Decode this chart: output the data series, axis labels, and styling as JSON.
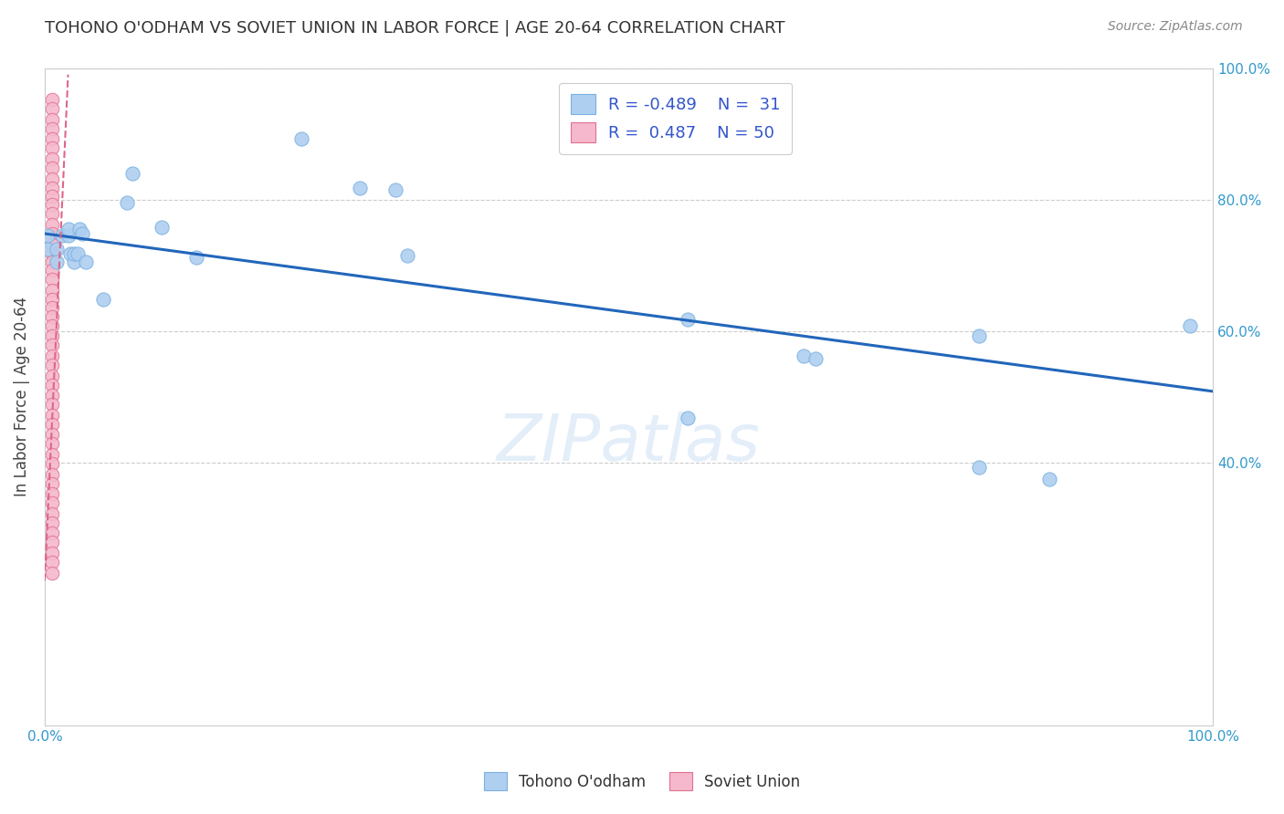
{
  "title": "TOHONO O'ODHAM VS SOVIET UNION IN LABOR FORCE | AGE 20-64 CORRELATION CHART",
  "source": "Source: ZipAtlas.com",
  "ylabel": "In Labor Force | Age 20-64",
  "xlim": [
    0.0,
    1.0
  ],
  "ylim": [
    0.0,
    1.0
  ],
  "tohono_color": "#aecff0",
  "tohono_edge": "#7ab0e0",
  "soviet_color": "#f5b8cc",
  "soviet_edge": "#e07090",
  "trend_color_tohono": "#2266bb",
  "trend_color_soviet": "#dd6688",
  "watermark": "ZIPatlas",
  "tohono_points": [
    [
      0.002,
      0.745
    ],
    [
      0.002,
      0.725
    ],
    [
      0.01,
      0.725
    ],
    [
      0.01,
      0.705
    ],
    [
      0.015,
      0.745
    ],
    [
      0.02,
      0.745
    ],
    [
      0.02,
      0.755
    ],
    [
      0.022,
      0.718
    ],
    [
      0.025,
      0.705
    ],
    [
      0.025,
      0.718
    ],
    [
      0.028,
      0.718
    ],
    [
      0.03,
      0.755
    ],
    [
      0.032,
      0.748
    ],
    [
      0.035,
      0.705
    ],
    [
      0.05,
      0.648
    ],
    [
      0.07,
      0.795
    ],
    [
      0.075,
      0.84
    ],
    [
      0.1,
      0.758
    ],
    [
      0.13,
      0.712
    ],
    [
      0.22,
      0.892
    ],
    [
      0.27,
      0.818
    ],
    [
      0.3,
      0.815
    ],
    [
      0.31,
      0.715
    ],
    [
      0.55,
      0.618
    ],
    [
      0.55,
      0.468
    ],
    [
      0.65,
      0.562
    ],
    [
      0.66,
      0.558
    ],
    [
      0.8,
      0.592
    ],
    [
      0.8,
      0.392
    ],
    [
      0.86,
      0.375
    ],
    [
      0.98,
      0.608
    ]
  ],
  "soviet_points": [
    [
      0.006,
      0.952
    ],
    [
      0.006,
      0.938
    ],
    [
      0.006,
      0.922
    ],
    [
      0.006,
      0.908
    ],
    [
      0.006,
      0.892
    ],
    [
      0.006,
      0.878
    ],
    [
      0.006,
      0.862
    ],
    [
      0.006,
      0.848
    ],
    [
      0.006,
      0.832
    ],
    [
      0.006,
      0.818
    ],
    [
      0.006,
      0.805
    ],
    [
      0.006,
      0.792
    ],
    [
      0.006,
      0.778
    ],
    [
      0.006,
      0.762
    ],
    [
      0.006,
      0.748
    ],
    [
      0.006,
      0.732
    ],
    [
      0.006,
      0.718
    ],
    [
      0.006,
      0.705
    ],
    [
      0.006,
      0.692
    ],
    [
      0.006,
      0.678
    ],
    [
      0.006,
      0.662
    ],
    [
      0.006,
      0.648
    ],
    [
      0.006,
      0.635
    ],
    [
      0.006,
      0.622
    ],
    [
      0.006,
      0.608
    ],
    [
      0.006,
      0.592
    ],
    [
      0.006,
      0.578
    ],
    [
      0.006,
      0.562
    ],
    [
      0.006,
      0.548
    ],
    [
      0.006,
      0.532
    ],
    [
      0.006,
      0.518
    ],
    [
      0.006,
      0.502
    ],
    [
      0.006,
      0.488
    ],
    [
      0.006,
      0.472
    ],
    [
      0.006,
      0.458
    ],
    [
      0.006,
      0.442
    ],
    [
      0.006,
      0.428
    ],
    [
      0.006,
      0.412
    ],
    [
      0.006,
      0.398
    ],
    [
      0.006,
      0.382
    ],
    [
      0.006,
      0.368
    ],
    [
      0.006,
      0.352
    ],
    [
      0.006,
      0.338
    ],
    [
      0.006,
      0.322
    ],
    [
      0.006,
      0.308
    ],
    [
      0.006,
      0.292
    ],
    [
      0.006,
      0.278
    ],
    [
      0.006,
      0.262
    ],
    [
      0.006,
      0.248
    ],
    [
      0.006,
      0.232
    ]
  ],
  "tohono_trend_x": [
    0.0,
    1.0
  ],
  "tohono_trend_y": [
    0.748,
    0.508
  ],
  "soviet_trend_x": [
    0.0,
    0.02
  ],
  "soviet_trend_y": [
    0.22,
    0.99
  ],
  "right_yticks": [
    0.4,
    0.6,
    0.8,
    1.0
  ],
  "right_yticklabels": [
    "40.0%",
    "60.0%",
    "80.0%",
    "100.0%"
  ],
  "xtick_labels_show": {
    "0.0": "0.0%",
    "1.0": "100.0%"
  },
  "grid_ticks": [
    0.4,
    0.6,
    0.8,
    1.0
  ],
  "legend_items": [
    {
      "label": "R = -0.489    N =  31",
      "fc": "#aecff0",
      "ec": "#7ab0e0"
    },
    {
      "label": "R =  0.487    N = 50",
      "fc": "#f5b8cc",
      "ec": "#e07090"
    }
  ],
  "bottom_legend": [
    {
      "label": "Tohono O'odham",
      "fc": "#aecff0",
      "ec": "#7ab0e0"
    },
    {
      "label": "Soviet Union",
      "fc": "#f5b8cc",
      "ec": "#e07090"
    }
  ]
}
